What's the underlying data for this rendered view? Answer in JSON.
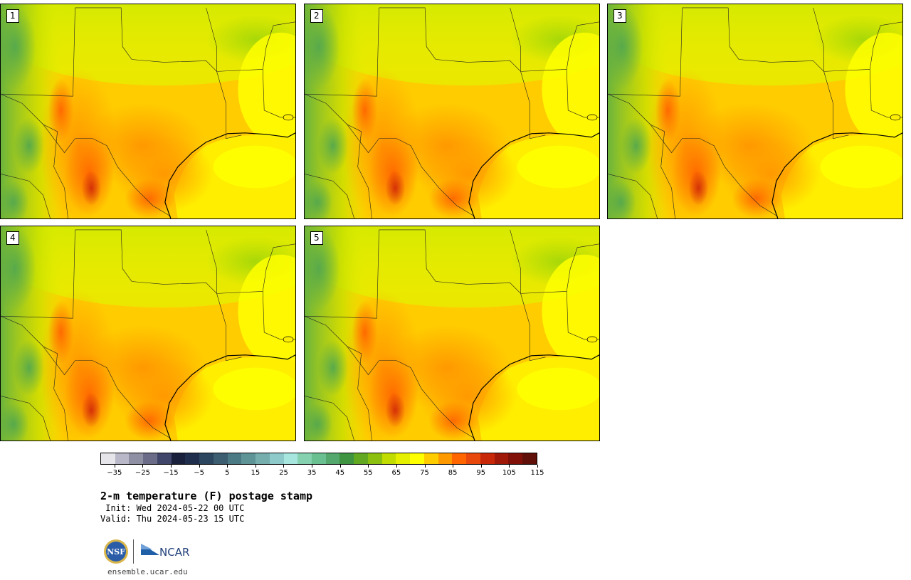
{
  "panels": [
    {
      "label": "1"
    },
    {
      "label": "2"
    },
    {
      "label": "3"
    },
    {
      "label": "4"
    },
    {
      "label": "5"
    }
  ],
  "colorbar": {
    "colors": [
      "#e6e6ea",
      "#b8b8c8",
      "#9090a4",
      "#6a6c88",
      "#40466a",
      "#18203c",
      "#1e2e4c",
      "#2c4660",
      "#3c5e70",
      "#4c7a84",
      "#5e9496",
      "#76aeae",
      "#8ecaca",
      "#a6e6de",
      "#86d2b0",
      "#6ac090",
      "#54a86e",
      "#3e9440",
      "#62a820",
      "#8cc010",
      "#c0dc00",
      "#e4f000",
      "#ffff00",
      "#ffcc00",
      "#ff9900",
      "#ff6600",
      "#e8480c",
      "#c82808",
      "#a01808",
      "#801008",
      "#601008"
    ],
    "ticks": [
      "−35",
      "−25",
      "−15",
      "−5",
      "5",
      "15",
      "25",
      "35",
      "45",
      "55",
      "65",
      "75",
      "85",
      "95",
      "105",
      "115"
    ],
    "min": -40,
    "max": 120
  },
  "title": "2-m temperature (F) postage stamp",
  "init": " Init: Wed 2024-05-22 00 UTC",
  "valid": "Valid: Thu 2024-05-23 15 UTC",
  "logos": {
    "nsf": "NSF",
    "ncar": "NCAR"
  },
  "site": "ensemble.ucar.edu"
}
